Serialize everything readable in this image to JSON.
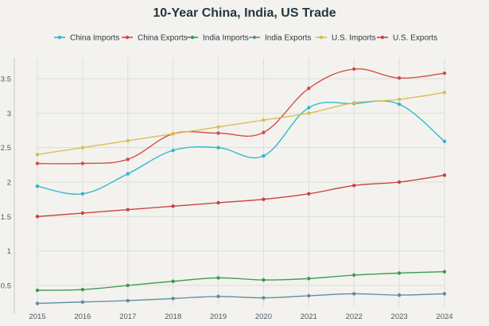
{
  "chart_data": {
    "type": "line",
    "title": "10-Year China, India, US Trade",
    "xlabel": "",
    "ylabel": "",
    "x": [
      "2015",
      "2016",
      "2017",
      "2018",
      "2019",
      "2020",
      "2021",
      "2022",
      "2023",
      "2024"
    ],
    "y_ticks": [
      "0.5",
      "1",
      "1.5",
      "2",
      "2.5",
      "3",
      "3.5"
    ],
    "ylim": [
      0.2,
      3.8
    ],
    "grid": true,
    "legend_position": "top",
    "series": [
      {
        "name": "China Imports",
        "color": "#2bb7cf",
        "values": [
          1.94,
          1.83,
          2.12,
          2.46,
          2.5,
          2.38,
          3.08,
          3.14,
          3.13,
          2.59
        ]
      },
      {
        "name": "China Exports",
        "color": "#d44b45",
        "values": [
          2.27,
          2.27,
          2.33,
          2.7,
          2.71,
          2.72,
          3.36,
          3.64,
          3.51,
          3.58
        ]
      },
      {
        "name": "India Imports",
        "color": "#3a9a4e",
        "values": [
          0.43,
          0.44,
          0.5,
          0.56,
          0.61,
          0.58,
          0.6,
          0.65,
          0.68,
          0.7
        ]
      },
      {
        "name": "India Exports",
        "color": "#5f8da0",
        "values": [
          0.24,
          0.26,
          0.28,
          0.31,
          0.34,
          0.32,
          0.35,
          0.38,
          0.36,
          0.38
        ]
      },
      {
        "name": "U.S. Imports",
        "color": "#d8bd55",
        "values": [
          2.4,
          2.5,
          2.6,
          2.7,
          2.8,
          2.9,
          3.0,
          3.15,
          3.2,
          3.3
        ]
      },
      {
        "name": "U.S. Exports",
        "color": "#c9413e",
        "values": [
          1.5,
          1.55,
          1.6,
          1.65,
          1.7,
          1.75,
          1.83,
          1.95,
          2.0,
          2.1
        ]
      }
    ]
  }
}
